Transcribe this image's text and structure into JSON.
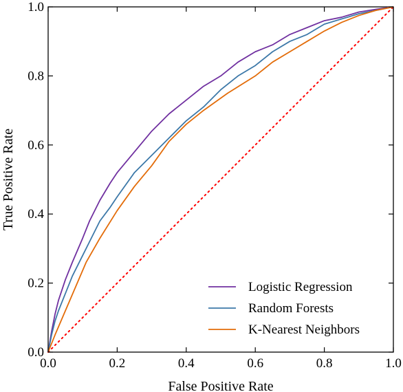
{
  "chart_data": {
    "type": "line",
    "title": "",
    "xlabel": "False Positive Rate",
    "ylabel": "True Positive Rate",
    "xlim": [
      0,
      1
    ],
    "ylim": [
      0,
      1
    ],
    "grid": false,
    "legend_position": "bottom-right",
    "x_ticks": [
      "0.0",
      "0.2",
      "0.4",
      "0.6",
      "0.8",
      "1.0"
    ],
    "y_ticks": [
      "0.0",
      "0.2",
      "0.4",
      "0.6",
      "0.8",
      "1.0"
    ],
    "series": [
      {
        "name": "Logistic Regression",
        "color": "#7030a0",
        "points": [
          [
            0,
            0
          ],
          [
            0.01,
            0.06
          ],
          [
            0.02,
            0.11
          ],
          [
            0.03,
            0.15
          ],
          [
            0.05,
            0.21
          ],
          [
            0.07,
            0.26
          ],
          [
            0.1,
            0.33
          ],
          [
            0.12,
            0.38
          ],
          [
            0.15,
            0.44
          ],
          [
            0.18,
            0.49
          ],
          [
            0.2,
            0.52
          ],
          [
            0.25,
            0.58
          ],
          [
            0.3,
            0.64
          ],
          [
            0.35,
            0.69
          ],
          [
            0.4,
            0.73
          ],
          [
            0.45,
            0.77
          ],
          [
            0.5,
            0.8
          ],
          [
            0.55,
            0.84
          ],
          [
            0.6,
            0.87
          ],
          [
            0.65,
            0.89
          ],
          [
            0.7,
            0.92
          ],
          [
            0.75,
            0.94
          ],
          [
            0.8,
            0.96
          ],
          [
            0.85,
            0.97
          ],
          [
            0.9,
            0.985
          ],
          [
            0.95,
            0.993
          ],
          [
            1,
            1
          ]
        ]
      },
      {
        "name": "Random Forests",
        "color": "#3c78a8",
        "points": [
          [
            0,
            0
          ],
          [
            0.01,
            0.05
          ],
          [
            0.02,
            0.09
          ],
          [
            0.03,
            0.12
          ],
          [
            0.05,
            0.17
          ],
          [
            0.07,
            0.22
          ],
          [
            0.1,
            0.28
          ],
          [
            0.12,
            0.32
          ],
          [
            0.15,
            0.38
          ],
          [
            0.18,
            0.42
          ],
          [
            0.2,
            0.45
          ],
          [
            0.25,
            0.52
          ],
          [
            0.3,
            0.57
          ],
          [
            0.35,
            0.62
          ],
          [
            0.4,
            0.67
          ],
          [
            0.45,
            0.71
          ],
          [
            0.5,
            0.76
          ],
          [
            0.55,
            0.8
          ],
          [
            0.6,
            0.83
          ],
          [
            0.65,
            0.87
          ],
          [
            0.7,
            0.9
          ],
          [
            0.75,
            0.92
          ],
          [
            0.8,
            0.95
          ],
          [
            0.85,
            0.965
          ],
          [
            0.9,
            0.98
          ],
          [
            0.95,
            0.99
          ],
          [
            1,
            1
          ]
        ]
      },
      {
        "name": "K-Nearest Neighbors",
        "color": "#e36c09",
        "points": [
          [
            0,
            0
          ],
          [
            0.02,
            0.05
          ],
          [
            0.05,
            0.12
          ],
          [
            0.08,
            0.19
          ],
          [
            0.11,
            0.26
          ],
          [
            0.15,
            0.33
          ],
          [
            0.2,
            0.41
          ],
          [
            0.25,
            0.48
          ],
          [
            0.3,
            0.54
          ],
          [
            0.35,
            0.61
          ],
          [
            0.4,
            0.66
          ],
          [
            0.45,
            0.7
          ],
          [
            0.52,
            0.75
          ],
          [
            0.6,
            0.8
          ],
          [
            0.65,
            0.84
          ],
          [
            0.7,
            0.87
          ],
          [
            0.75,
            0.9
          ],
          [
            0.8,
            0.93
          ],
          [
            0.85,
            0.955
          ],
          [
            0.9,
            0.975
          ],
          [
            0.95,
            0.99
          ],
          [
            1,
            1
          ]
        ]
      }
    ],
    "reference_line": {
      "color": "#ff0000",
      "points": [
        [
          0,
          0
        ],
        [
          1,
          1
        ]
      ]
    }
  }
}
